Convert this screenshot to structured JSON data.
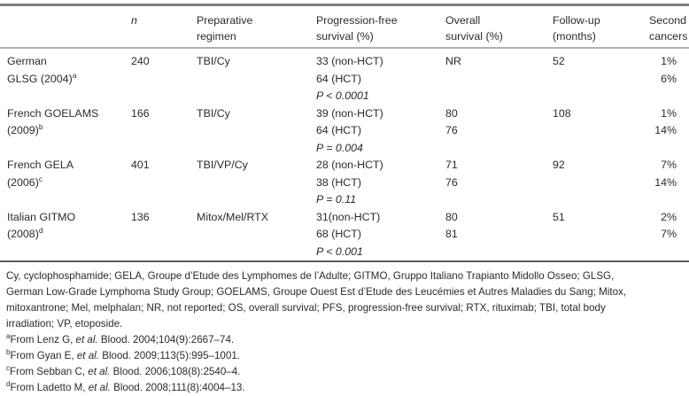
{
  "table": {
    "headers": {
      "study": "",
      "n": "n",
      "regimen": [
        "Preparative",
        "regimen"
      ],
      "pfs": [
        "Progression-free",
        "survival (%)"
      ],
      "os": [
        "Overall",
        "survival (%)"
      ],
      "followup": [
        "Follow-up",
        "(months)"
      ],
      "second": [
        "Second",
        "cancers"
      ]
    },
    "rows": [
      {
        "study_lines": [
          "German",
          "GLSG (2004)"
        ],
        "study_sup": "a",
        "n": "240",
        "regimen": "TBI/Cy",
        "pfs": [
          "33 (non-HCT)",
          "64 (HCT)"
        ],
        "p_value": "P < 0.0001",
        "os": [
          "NR",
          ""
        ],
        "followup": "52",
        "second": [
          "1%",
          "6%"
        ]
      },
      {
        "study_lines": [
          "French GOELAMS",
          "(2009)"
        ],
        "study_sup": "b",
        "n": "166",
        "regimen": "TBI/Cy",
        "pfs": [
          "39 (non-HCT)",
          "64 (HCT)"
        ],
        "p_value": "P = 0.004",
        "os": [
          "80",
          "76"
        ],
        "followup": "108",
        "second": [
          "1%",
          "14%"
        ]
      },
      {
        "study_lines": [
          "French GELA",
          "(2006)"
        ],
        "study_sup": "c",
        "n": "401",
        "regimen": "TBI/VP/Cy",
        "pfs": [
          "28 (non-HCT)",
          "38 (HCT)"
        ],
        "p_value": "P = 0.11",
        "os": [
          "71",
          "76"
        ],
        "followup": "92",
        "second": [
          "7%",
          "14%"
        ]
      },
      {
        "study_lines": [
          "Italian GITMO",
          "(2008)"
        ],
        "study_sup": "d",
        "n": "136",
        "regimen": "Mitox/Mel/RTX",
        "pfs": [
          "31(non-HCT)",
          "68 (HCT)"
        ],
        "p_value": "P < 0.001",
        "os": [
          "80",
          "81"
        ],
        "followup": "51",
        "second": [
          "2%",
          "7%"
        ]
      }
    ]
  },
  "footnotes": {
    "abbreviation_lines": [
      "Cy, cyclophosphamide; GELA, Groupe d’Etude des Lymphomes de l’Adulte; GITMO, Gruppo Italiano Trapianto Midollo Osseo; GLSG,",
      "German Low-Grade Lymphoma Study Group; GOELAMS, Groupe Ouest Est d’Etude des Leucémies et Autres Maladies du Sang; Mitox,",
      "mitoxantrone; Mel, melphalan; NR, not reported; OS, overall survival; PFS, progression-free survival; RTX, rituximab; TBI, total body",
      "irradiation; VP, etoposide."
    ],
    "references": [
      {
        "sup": "a",
        "pre": "From Lenz G, ",
        "etal": "et al.",
        "post": " Blood. 2004;104(9):2667–74."
      },
      {
        "sup": "b",
        "pre": "From Gyan E, ",
        "etal": "et al.",
        "post": " Blood. 2009;113(5):995–1001."
      },
      {
        "sup": "c",
        "pre": "From Sebban C, ",
        "etal": "et al.",
        "post": " Blood. 2006;108(8):2540–4."
      },
      {
        "sup": "d",
        "pre": "From Ladetto M, ",
        "etal": "et al.",
        "post": " Blood. 2008;111(8):4004–13."
      }
    ]
  }
}
